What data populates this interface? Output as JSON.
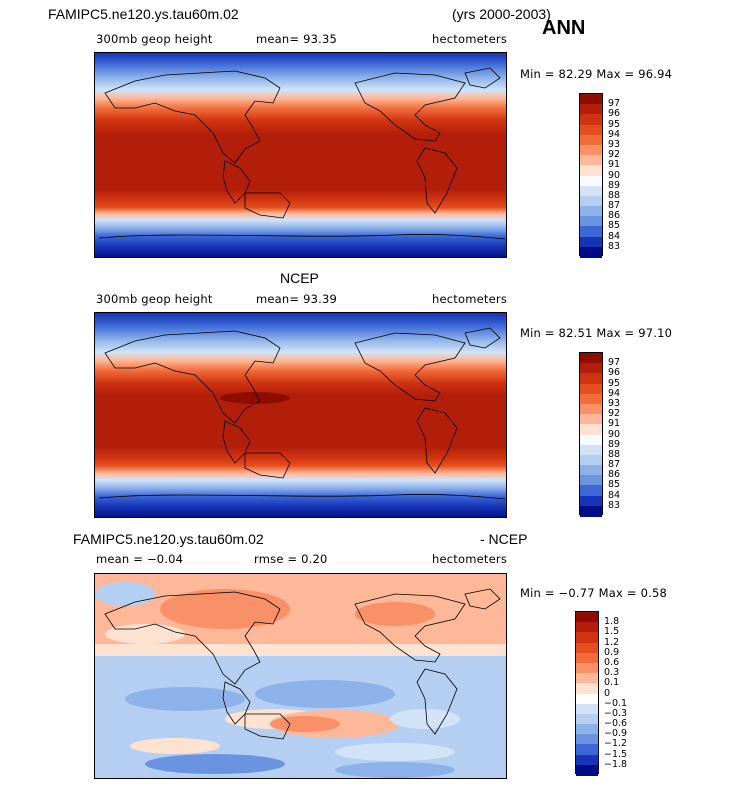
{
  "header": {
    "case": "FAMIPC5.ne120.ys.tau60m.02",
    "years": "(yrs 2000-2003)",
    "season": "ANN"
  },
  "panel1": {
    "variable": "300mb geop height",
    "mean": "mean=   93.35",
    "units": "hectometers",
    "minmax": "Min =  82.29 Max =  96.94",
    "levels": [
      "97",
      "96",
      "95",
      "94",
      "93",
      "92",
      "91",
      "90",
      "89",
      "88",
      "87",
      "86",
      "85",
      "84",
      "83"
    ],
    "colors": [
      "#8e0d00",
      "#b21e0a",
      "#cf330f",
      "#e54e1e",
      "#f26c3a",
      "#f99067",
      "#fdb899",
      "#fde2d2",
      "#f7fbff",
      "#d2e3f7",
      "#b4cff2",
      "#8db2ea",
      "#6a94e0",
      "#3b67d7",
      "#1634b6",
      "#000c85"
    ]
  },
  "panel2": {
    "title": "NCEP",
    "variable": "300mb geop height",
    "mean": "mean=   93.39",
    "units": "hectometers",
    "minmax": "Min =  82.51 Max =  97.10",
    "levels": [
      "97",
      "96",
      "95",
      "94",
      "93",
      "92",
      "91",
      "90",
      "89",
      "88",
      "87",
      "86",
      "85",
      "84",
      "83"
    ],
    "colors": [
      "#8e0d00",
      "#b21e0a",
      "#cf330f",
      "#e54e1e",
      "#f26c3a",
      "#f99067",
      "#fdb899",
      "#fde2d2",
      "#f7fbff",
      "#d2e3f7",
      "#b4cff2",
      "#8db2ea",
      "#6a94e0",
      "#3b67d7",
      "#1634b6",
      "#000c85"
    ]
  },
  "panel3": {
    "title_left": "FAMIPC5.ne120.ys.tau60m.02",
    "title_right": "- NCEP",
    "mean": "mean =  −0.04",
    "rmse": "rmse =    0.20",
    "units": "hectometers",
    "minmax": "Min =  −0.77 Max =    0.58",
    "levels": [
      "1.8",
      "1.5",
      "1.2",
      "0.9",
      "0.6",
      "0.3",
      "0.1",
      "0",
      "−0.1",
      "−0.3",
      "−0.6",
      "−0.9",
      "−1.2",
      "−1.5",
      "−1.8"
    ],
    "colors": [
      "#8e0d00",
      "#b21e0a",
      "#cf330f",
      "#e54e1e",
      "#f26c3a",
      "#f99067",
      "#fdb899",
      "#fde2d2",
      "#ffffff",
      "#d2e3f7",
      "#b4cff2",
      "#8db2ea",
      "#6a94e0",
      "#3b67d7",
      "#1634b6",
      "#000c85"
    ]
  }
}
